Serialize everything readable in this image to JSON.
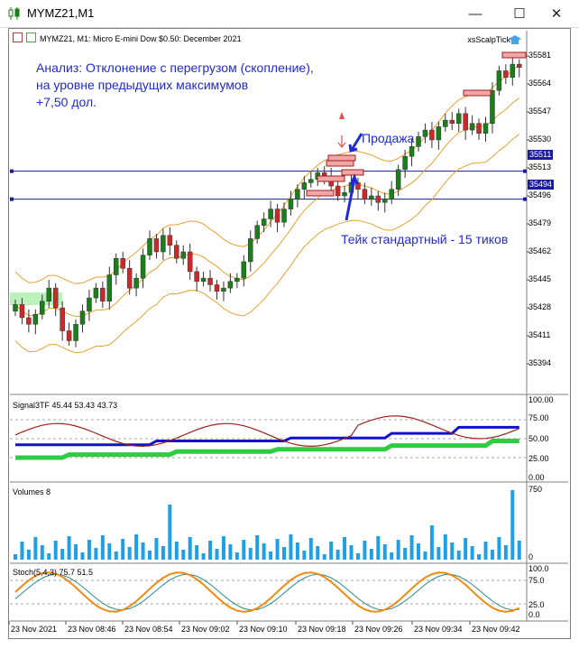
{
  "window": {
    "title": "MYMZ21,M1",
    "minimize_glyph": "—",
    "maximize_glyph": "☐",
    "close_glyph": "✕"
  },
  "chart": {
    "header": "MYMZ21, M1:  Micro E-mini Dow $0.50: December 2021",
    "expert_label": "xsScalpTick",
    "annotation_title": "Анализ: Отклонение с перегрузом (скопление),",
    "annotation_line2": "на уровне предыдущих максимумов",
    "annotation_line3": "+7,50 дол.",
    "sell_label": "Продажа",
    "take_label": "Тейк стандартный - 15 тиков",
    "price_levels": [
      "35581",
      "35564",
      "35547",
      "35530",
      "35513",
      "35496",
      "35479",
      "35462",
      "35445",
      "35428",
      "35411",
      "35394"
    ],
    "level_tags": [
      "35511",
      "35494"
    ]
  },
  "subpanels": {
    "signal_label": "Signal3TF 45.44 53.43 43.73",
    "signal_scale": [
      "100.00",
      "75.00",
      "50.00",
      "25.00",
      "0.00"
    ],
    "volumes_label": "Volumes 8",
    "volumes_scale": [
      "750",
      "0"
    ],
    "stoch_label": "Stoch(5,4,3) 75.7 51.5",
    "stoch_scale": [
      "100.0",
      "75.0",
      "25.0",
      "0.0"
    ]
  },
  "time_axis": [
    "23 Nov 2021",
    "23 Nov 08:46",
    "23 Nov 08:54",
    "23 Nov 09:02",
    "23 Nov 09:10",
    "23 Nov 09:18",
    "23 Nov 09:26",
    "23 Nov 09:34",
    "23 Nov 09:42"
  ],
  "colors": {
    "bull": "#1a7f1a",
    "bear": "#cc2a2a",
    "bands": "#e8a030",
    "level_line": "#1a1aa0",
    "annotation": "#1f2ad6",
    "signal_main": "#1010d0",
    "signal_slow": "#2ecc40",
    "signal_fast": "#a02020",
    "volume": "#1ea0e8",
    "stoch_main": "#2a8a8a",
    "stoch_signal": "#f08a10"
  },
  "icons": {
    "app": "candles-icon",
    "chart_type": "chart-type-icon",
    "expert": "expert-hat-icon"
  }
}
